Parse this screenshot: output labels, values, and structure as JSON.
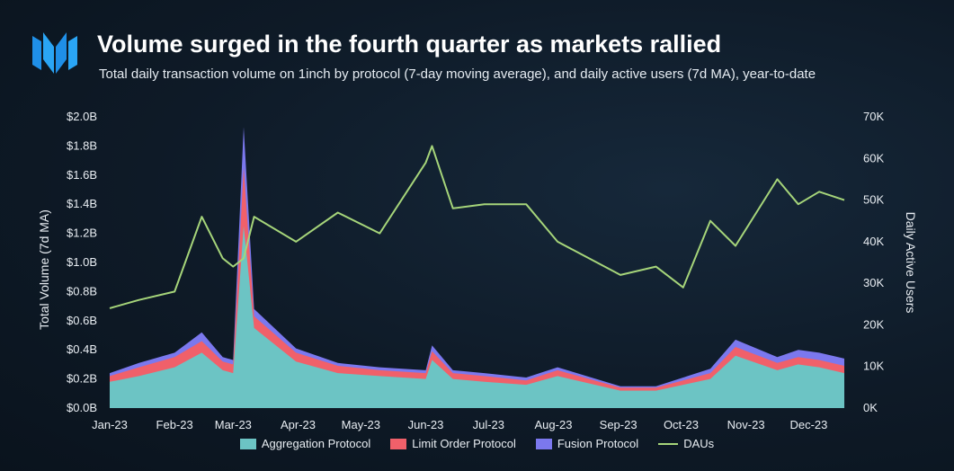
{
  "header": {
    "title": "Volume surged in the fourth quarter as markets rallied",
    "subtitle": "Total daily transaction volume on 1inch by protocol (7-day moving average), and daily active users (7d MA), year-to-date",
    "logo": "m-logo-icon"
  },
  "colors": {
    "aggregation": "#6cc4c4",
    "limit": "#f0606a",
    "fusion": "#7b78ee",
    "daus": "#a6d57a"
  },
  "legend": {
    "aggregation": "Aggregation Protocol",
    "limit": "Limit Order Protocol",
    "fusion": "Fusion Protocol",
    "daus": "DAUs"
  },
  "chart_data": {
    "type": "area",
    "title": "Volume surged in the fourth quarter as markets rallied",
    "ylabel": "Total Volume (7d MA)",
    "y2label": "Daily Active Users",
    "x_ticks": [
      "Jan-23",
      "Feb-23",
      "Mar-23",
      "Apr-23",
      "May-23",
      "Jun-23",
      "Jul-23",
      "Aug-23",
      "Sep-23",
      "Oct-23",
      "Nov-23",
      "Dec-23"
    ],
    "y_ticks": [
      "$0.0B",
      "$0.2B",
      "$0.4B",
      "$0.6B",
      "$0.8B",
      "$1.0B",
      "$1.2B",
      "$1.4B",
      "$1.6B",
      "$1.8B",
      "$2.0B"
    ],
    "y2_ticks": [
      "0K",
      "10K",
      "20K",
      "30K",
      "40K",
      "50K",
      "60K",
      "70K"
    ],
    "ylim": [
      0,
      2.0
    ],
    "y2lim": [
      0,
      70000
    ],
    "x": [
      1,
      15,
      32,
      45,
      55,
      60,
      65,
      70,
      90,
      110,
      130,
      152,
      155,
      165,
      180,
      200,
      215,
      245,
      262,
      275,
      288,
      300,
      320,
      330,
      340,
      352
    ],
    "x_dates": [
      "Jan 1",
      "Jan 15",
      "Feb 1",
      "Feb 14",
      "Feb 24",
      "Mar 1",
      "Mar 6",
      "Mar 11",
      "Mar 31",
      "Apr 20",
      "May 10",
      "Jun 1",
      "Jun 4",
      "Jun 14",
      "Jun 29",
      "Jul 19",
      "Aug 3",
      "Sep 2",
      "Sep 19",
      "Oct 2",
      "Oct 15",
      "Oct 27",
      "Nov 16",
      "Nov 26",
      "Dec 6",
      "Dec 18"
    ],
    "series": [
      {
        "name": "Aggregation Protocol",
        "values": [
          0.18,
          0.22,
          0.28,
          0.38,
          0.26,
          0.24,
          1.25,
          0.55,
          0.32,
          0.24,
          0.22,
          0.2,
          0.33,
          0.2,
          0.18,
          0.16,
          0.22,
          0.12,
          0.12,
          0.16,
          0.2,
          0.36,
          0.26,
          0.3,
          0.28,
          0.24
        ]
      },
      {
        "name": "Limit Order Protocol",
        "values": [
          0.04,
          0.06,
          0.07,
          0.08,
          0.06,
          0.06,
          0.4,
          0.08,
          0.06,
          0.05,
          0.04,
          0.04,
          0.06,
          0.04,
          0.04,
          0.03,
          0.04,
          0.02,
          0.02,
          0.03,
          0.04,
          0.06,
          0.05,
          0.05,
          0.05,
          0.05
        ]
      },
      {
        "name": "Fusion Protocol",
        "values": [
          0.02,
          0.03,
          0.03,
          0.06,
          0.03,
          0.03,
          0.28,
          0.05,
          0.03,
          0.02,
          0.02,
          0.02,
          0.04,
          0.02,
          0.02,
          0.02,
          0.02,
          0.01,
          0.01,
          0.02,
          0.03,
          0.05,
          0.04,
          0.05,
          0.05,
          0.05
        ]
      },
      {
        "name": "DAUs",
        "values": [
          24000,
          26000,
          28000,
          46000,
          36000,
          34000,
          36000,
          46000,
          40000,
          47000,
          42000,
          59000,
          63000,
          48000,
          49000,
          49000,
          40000,
          32000,
          34000,
          29000,
          45000,
          39000,
          55000,
          49000,
          52000,
          50000
        ]
      }
    ],
    "grid": false,
    "legend_position": "bottom"
  }
}
